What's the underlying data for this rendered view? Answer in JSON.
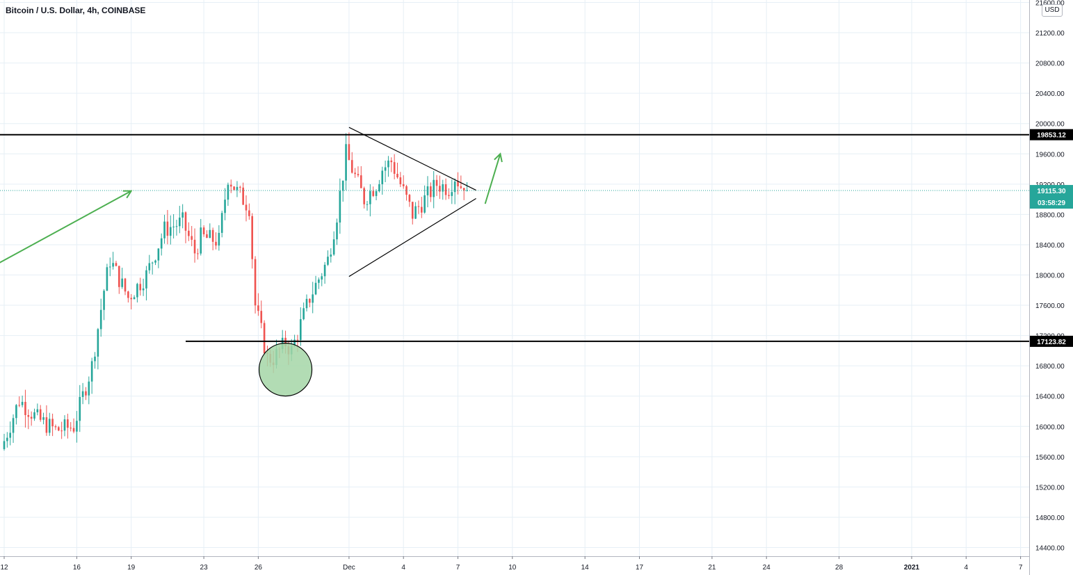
{
  "title": "Bitcoin / U.S. Dollar, 4h, COINBASE",
  "currency_button": "USD",
  "colors": {
    "up": "#26a69a",
    "down": "#ef5350",
    "annotation_green": "#4caf50",
    "grid": "#e6eff6",
    "level_line": "#000000",
    "current_price": "#26a69a",
    "circle_fill": "#a5d6a7"
  },
  "chart_data": {
    "type": "candlestick",
    "title": "Bitcoin / U.S. Dollar, 4h, COINBASE",
    "ylim": [
      14200,
      21700
    ],
    "y_ticks": [
      14400,
      14800,
      15200,
      15600,
      16000,
      16400,
      16800,
      17200,
      17600,
      18000,
      18400,
      18800,
      19200,
      19600,
      20000,
      20400,
      20800,
      21200,
      21600
    ],
    "y_tick_labels": [
      "14400.00",
      "14800.00",
      "15200.00",
      "15600.00",
      "16000.00",
      "16400.00",
      "16800.00",
      "17200.00",
      "17600.00",
      "18000.00",
      "18400.00",
      "18800.00",
      "19200.00",
      "19600.00",
      "20000.00",
      "20400.00",
      "20800.00",
      "21200.00",
      "21600.00"
    ],
    "x_start_date": "2020-11-12",
    "x_end_date": "2021-01-07",
    "x_ticks": [
      {
        "date": "2020-11-12",
        "label": "12"
      },
      {
        "date": "2020-11-16",
        "label": "16"
      },
      {
        "date": "2020-11-19",
        "label": "19"
      },
      {
        "date": "2020-11-23",
        "label": "23"
      },
      {
        "date": "2020-11-26",
        "label": "26"
      },
      {
        "date": "2020-12-01",
        "label": "Dec"
      },
      {
        "date": "2020-12-04",
        "label": "4"
      },
      {
        "date": "2020-12-07",
        "label": "7"
      },
      {
        "date": "2020-12-10",
        "label": "10"
      },
      {
        "date": "2020-12-14",
        "label": "14"
      },
      {
        "date": "2020-12-17",
        "label": "17"
      },
      {
        "date": "2020-12-21",
        "label": "21"
      },
      {
        "date": "2020-12-24",
        "label": "24"
      },
      {
        "date": "2020-12-28",
        "label": "28"
      },
      {
        "date": "2021-01-01",
        "label": "2021",
        "bold": true
      },
      {
        "date": "2021-01-04",
        "label": "4"
      },
      {
        "date": "2021-01-07",
        "label": "7"
      }
    ],
    "grid": true,
    "ohlc_anchors": [
      {
        "date": "2020-11-12",
        "price": 15700
      },
      {
        "date": "2020-11-13",
        "price": 16350
      },
      {
        "date": "2020-11-14",
        "price": 16100
      },
      {
        "date": "2020-11-15",
        "price": 15950
      },
      {
        "date": "2020-11-16",
        "price": 16000
      },
      {
        "date": "2020-11-17",
        "price": 16800
      },
      {
        "date": "2020-11-17 16:00",
        "price": 17800
      },
      {
        "date": "2020-11-18",
        "price": 18200
      },
      {
        "date": "2020-11-19",
        "price": 17700
      },
      {
        "date": "2020-11-20",
        "price": 18000
      },
      {
        "date": "2020-11-21",
        "price": 18600
      },
      {
        "date": "2020-11-22",
        "price": 18700
      },
      {
        "date": "2020-11-22 16:00",
        "price": 18300
      },
      {
        "date": "2020-11-23",
        "price": 18500
      },
      {
        "date": "2020-11-24",
        "price": 18450
      },
      {
        "date": "2020-11-24 12:00",
        "price": 19300
      },
      {
        "date": "2020-11-25",
        "price": 19100
      },
      {
        "date": "2020-11-25 16:00",
        "price": 18900
      },
      {
        "date": "2020-11-26",
        "price": 17600
      },
      {
        "date": "2020-11-26 16:00",
        "price": 16900
      },
      {
        "date": "2020-11-27",
        "price": 16900
      },
      {
        "date": "2020-11-27 16:00",
        "price": 17100
      },
      {
        "date": "2020-11-28",
        "price": 17000
      },
      {
        "date": "2020-11-29",
        "price": 17700
      },
      {
        "date": "2020-11-30",
        "price": 18200
      },
      {
        "date": "2020-11-30 12:00",
        "price": 18800
      },
      {
        "date": "2020-12-01",
        "price": 19600
      },
      {
        "date": "2020-12-01 12:00",
        "price": 19300
      },
      {
        "date": "2020-12-02",
        "price": 19000
      },
      {
        "date": "2020-12-02 16:00",
        "price": 19200
      },
      {
        "date": "2020-12-03",
        "price": 19400
      },
      {
        "date": "2020-12-03 12:00",
        "price": 19500
      },
      {
        "date": "2020-12-04",
        "price": 19200
      },
      {
        "date": "2020-12-04 16:00",
        "price": 18800
      },
      {
        "date": "2020-12-05",
        "price": 18900
      },
      {
        "date": "2020-12-05 16:00",
        "price": 19100
      },
      {
        "date": "2020-12-06",
        "price": 19200
      },
      {
        "date": "2020-12-06 16:00",
        "price": 19150
      },
      {
        "date": "2020-12-07",
        "price": 19300
      },
      {
        "date": "2020-12-07 12:00",
        "price": 19115
      }
    ],
    "horizontal_levels": [
      {
        "price": 19853.12,
        "label": "19853.12"
      },
      {
        "price": 17123.82,
        "label": "17123.82"
      }
    ],
    "current_price": {
      "price": 19115.3,
      "label": "19115.30",
      "countdown": "03:58:29"
    },
    "annotations": {
      "triangle_upper": [
        {
          "date": "2020-12-01",
          "price": 19950
        },
        {
          "date": "2020-12-08",
          "price": 19120
        }
      ],
      "triangle_lower": [
        {
          "date": "2020-12-01",
          "price": 17980
        },
        {
          "date": "2020-12-08",
          "price": 19010
        }
      ],
      "arrow_left": [
        {
          "date": "2020-11-11 12:00",
          "price": 18130
        },
        {
          "date": "2020-11-19",
          "price": 19110
        }
      ],
      "arrow_breakout": [
        {
          "date": "2020-12-08 12:00",
          "price": 18940
        },
        {
          "date": "2020-12-09 08:00",
          "price": 19600
        }
      ],
      "circle_center": {
        "date": "2020-11-27 12:00",
        "price": 16750
      }
    }
  }
}
